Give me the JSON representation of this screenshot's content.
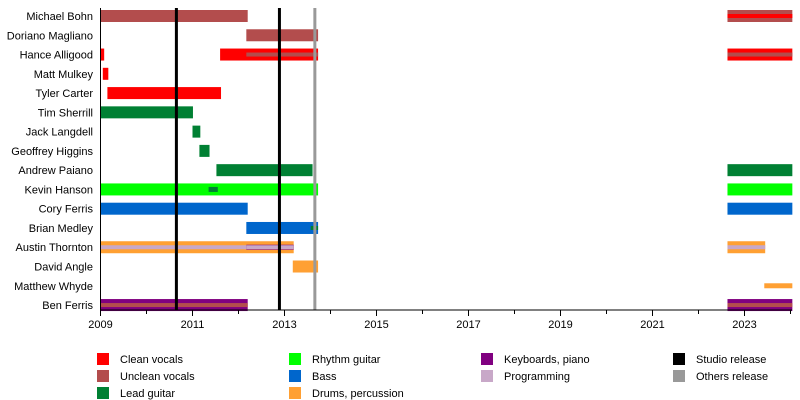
{
  "chart_data": {
    "type": "timeline",
    "xlim": [
      2009,
      2024.04
    ],
    "x_ticks": [
      "2009",
      "2011",
      "2013",
      "2015",
      "2017",
      "2019",
      "2021",
      "2023"
    ],
    "members": [
      {
        "name": "Michael Bohn",
        "bars": [
          {
            "role": "Unclean vocals",
            "start": 2009,
            "end": 2012.2
          },
          {
            "role": "Unclean vocals",
            "start": 2022.63,
            "end": 2024.04,
            "inner": "Clean vocals"
          }
        ]
      },
      {
        "name": "Doriano Magliano",
        "bars": [
          {
            "role": "Unclean vocals",
            "start": 2012.17,
            "end": 2013.73
          }
        ]
      },
      {
        "name": "Hance Alligood",
        "bars": [
          {
            "role": "Clean vocals",
            "start": 2009,
            "end": 2009.08
          },
          {
            "role": "Clean vocals",
            "start": 2011.6,
            "end": 2013.73,
            "inner": "Unclean vocals",
            "inner_start": 2012.17
          },
          {
            "role": "Clean vocals",
            "start": 2022.63,
            "end": 2024.04,
            "inner": "Unclean vocals"
          }
        ]
      },
      {
        "name": "Matt Mulkey",
        "bars": [
          {
            "role": "Clean vocals",
            "start": 2009.05,
            "end": 2009.17
          }
        ]
      },
      {
        "name": "Tyler Carter",
        "bars": [
          {
            "role": "Clean vocals",
            "start": 2009.15,
            "end": 2011.62
          }
        ]
      },
      {
        "name": "Tim Sherrill",
        "bars": [
          {
            "role": "Lead guitar",
            "start": 2009,
            "end": 2011.01
          }
        ]
      },
      {
        "name": "Jack Langdell",
        "bars": [
          {
            "role": "Lead guitar",
            "start": 2011.0,
            "end": 2011.17
          }
        ]
      },
      {
        "name": "Geoffrey Higgins",
        "bars": [
          {
            "role": "Lead guitar",
            "start": 2011.15,
            "end": 2011.37
          }
        ]
      },
      {
        "name": "Andrew Paiano",
        "bars": [
          {
            "role": "Lead guitar",
            "start": 2011.52,
            "end": 2013.61
          },
          {
            "role": "Lead guitar",
            "start": 2022.63,
            "end": 2024.04
          }
        ]
      },
      {
        "name": "Kevin Hanson",
        "bars": [
          {
            "role": "Rhythm guitar",
            "start": 2009,
            "end": 2013.73
          },
          {
            "role": "Lead guitar",
            "start": 2011.35,
            "end": 2011.55,
            "thin": true
          },
          {
            "role": "Rhythm guitar",
            "start": 2022.63,
            "end": 2024.04
          }
        ]
      },
      {
        "name": "Cory Ferris",
        "bars": [
          {
            "role": "Bass",
            "start": 2009,
            "end": 2012.2
          },
          {
            "role": "Bass",
            "start": 2022.63,
            "end": 2024.04
          }
        ]
      },
      {
        "name": "Brian Medley",
        "bars": [
          {
            "role": "Bass",
            "start": 2012.17,
            "end": 2013.73,
            "inner": "Lead guitar",
            "inner_start": 2013.57
          }
        ]
      },
      {
        "name": "Austin Thornton",
        "bars": [
          {
            "role": "Drums, percussion",
            "start": 2009,
            "end": 2013.2,
            "inner": "Programming"
          },
          {
            "role": "Keyboards, piano",
            "start": 2012.17,
            "end": 2013.2,
            "thin": true,
            "inner": "Programming"
          },
          {
            "role": "Drums, percussion",
            "start": 2022.63,
            "end": 2023.45,
            "inner": "Programming"
          }
        ]
      },
      {
        "name": "David Angle",
        "bars": [
          {
            "role": "Drums, percussion",
            "start": 2013.18,
            "end": 2013.73
          }
        ]
      },
      {
        "name": "Matthew Whyde",
        "bars": [
          {
            "role": "Drums, percussion",
            "start": 2023.43,
            "end": 2024.04,
            "thin": true
          }
        ]
      },
      {
        "name": "Ben Ferris",
        "bars": [
          {
            "role": "Keyboards, piano",
            "start": 2009,
            "end": 2012.2,
            "inner": "Unclean vocals"
          },
          {
            "role": "Keyboards, piano",
            "start": 2022.63,
            "end": 2024.04,
            "inner": "Unclean vocals"
          }
        ]
      }
    ],
    "events": [
      {
        "type": "Studio release",
        "date": 2010.65
      },
      {
        "type": "Studio release",
        "date": 2012.89
      },
      {
        "type": "Others release",
        "date": 2013.66
      }
    ],
    "legend": [
      {
        "label": "Clean vocals",
        "color": "#ff0000"
      },
      {
        "label": "Unclean vocals",
        "color": "#b34d4d"
      },
      {
        "label": "Lead guitar",
        "color": "#008033"
      },
      {
        "label": "Rhythm guitar",
        "color": "#00ff00"
      },
      {
        "label": "Bass",
        "color": "#0066cc"
      },
      {
        "label": "Drums, percussion",
        "color": "#ffa033"
      },
      {
        "label": "Keyboards, piano",
        "color": "#800080"
      },
      {
        "label": "Programming",
        "color": "#c8a8c8"
      },
      {
        "label": "Studio release",
        "color": "#000000"
      },
      {
        "label": "Others release",
        "color": "#999999"
      }
    ],
    "legend_placement": "bottom"
  }
}
